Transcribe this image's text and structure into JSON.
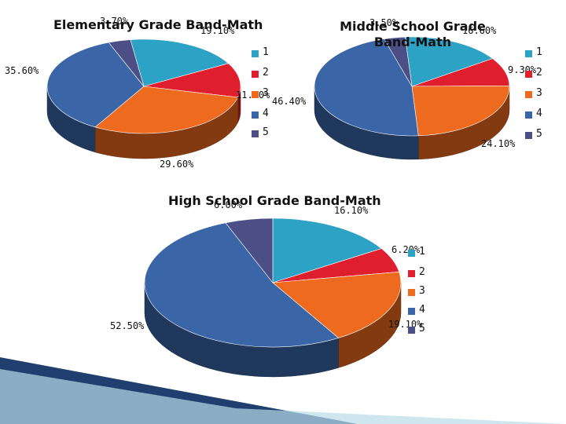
{
  "colors": [
    "#2ca2c4",
    "#e01f2e",
    "#ee6a1f",
    "#3a65a7",
    "#4c4f86"
  ],
  "chart_data": [
    {
      "type": "pie",
      "title": "Elementary Grade Band-Math",
      "categories": [
        "1",
        "2",
        "3",
        "4",
        "5"
      ],
      "values": [
        19.1,
        11.8,
        29.6,
        35.6,
        3.7
      ],
      "data_labels": [
        "19.10%",
        "11.80%",
        "29.60%",
        "35.60%",
        "3.70%"
      ],
      "legend_position": "right"
    },
    {
      "type": "pie",
      "title": "Middle School Grade Band-Math",
      "categories": [
        "1",
        "2",
        "3",
        "4",
        "5"
      ],
      "values": [
        16.6,
        9.3,
        24.1,
        46.4,
        3.5
      ],
      "data_labels": [
        "16.60%",
        "9.30%",
        "24.10%",
        "46.40%",
        "3.50%"
      ],
      "legend_position": "right"
    },
    {
      "type": "pie",
      "title": "High School Grade Band-Math",
      "categories": [
        "1",
        "2",
        "3",
        "4",
        "5"
      ],
      "values": [
        16.1,
        6.2,
        19.1,
        52.5,
        6.0
      ],
      "data_labels": [
        "16.10%",
        "6.20%",
        "19.10%",
        "52.50%",
        "6.00%"
      ],
      "legend_position": "right"
    }
  ]
}
